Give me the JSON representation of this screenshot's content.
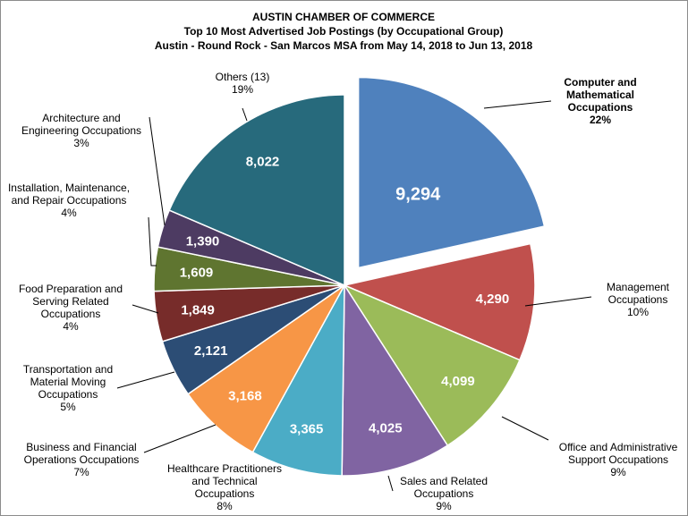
{
  "chart_data": {
    "type": "pie",
    "title": [
      "AUSTIN CHAMBER  OF COMMERCE",
      "Top 10 Most Advertised Job Postings  (by Occupational Group)",
      "Austin  - Round Rock - San Marcos MSA from May 14, 2018 to Jun 13, 2018"
    ],
    "slices": [
      {
        "label": [
          "Computer and",
          "Mathematical",
          "Occupations"
        ],
        "percent": "22%",
        "value": 9294,
        "value_text": "9,294",
        "color": "#4f81bd",
        "exploded": true
      },
      {
        "label": [
          "Management",
          "Occupations"
        ],
        "percent": "10%",
        "value": 4290,
        "value_text": "4,290",
        "color": "#c0504d"
      },
      {
        "label": [
          "Office and Administrative",
          "Support Occupations"
        ],
        "percent": "9%",
        "value": 4099,
        "value_text": "4,099",
        "color": "#9bbb59"
      },
      {
        "label": [
          "Sales and Related",
          "Occupations"
        ],
        "percent": "9%",
        "value": 4025,
        "value_text": "4,025",
        "color": "#8064a2"
      },
      {
        "label": [
          "Healthcare Practitioners",
          "and Technical",
          "Occupations"
        ],
        "percent": "8%",
        "value": 3365,
        "value_text": "3,365",
        "color": "#4bacc6"
      },
      {
        "label": [
          "Business and Financial",
          "Operations Occupations"
        ],
        "percent": "7%",
        "value": 3168,
        "value_text": "3,168",
        "color": "#f79646"
      },
      {
        "label": [
          "Transportation and",
          "Material Moving",
          "Occupations"
        ],
        "percent": "5%",
        "value": 2121,
        "value_text": "2,121",
        "color": "#2c4d75"
      },
      {
        "label": [
          "Food Preparation and",
          "Serving Related",
          "Occupations"
        ],
        "percent": "4%",
        "value": 1849,
        "value_text": "1,849",
        "color": "#772c2a"
      },
      {
        "label": [
          "Installation, Maintenance,",
          "and Repair Occupations"
        ],
        "percent": "4%",
        "value": 1609,
        "value_text": "1,609",
        "color": "#5f7530"
      },
      {
        "label": [
          "Architecture and",
          "Engineering Occupations"
        ],
        "percent": "3%",
        "value": 1390,
        "value_text": "1,390",
        "color": "#4d3b62"
      },
      {
        "label": [
          "Others (13)"
        ],
        "percent": "19%",
        "value": 8022,
        "value_text": "8,022",
        "color": "#276a7c"
      }
    ]
  }
}
